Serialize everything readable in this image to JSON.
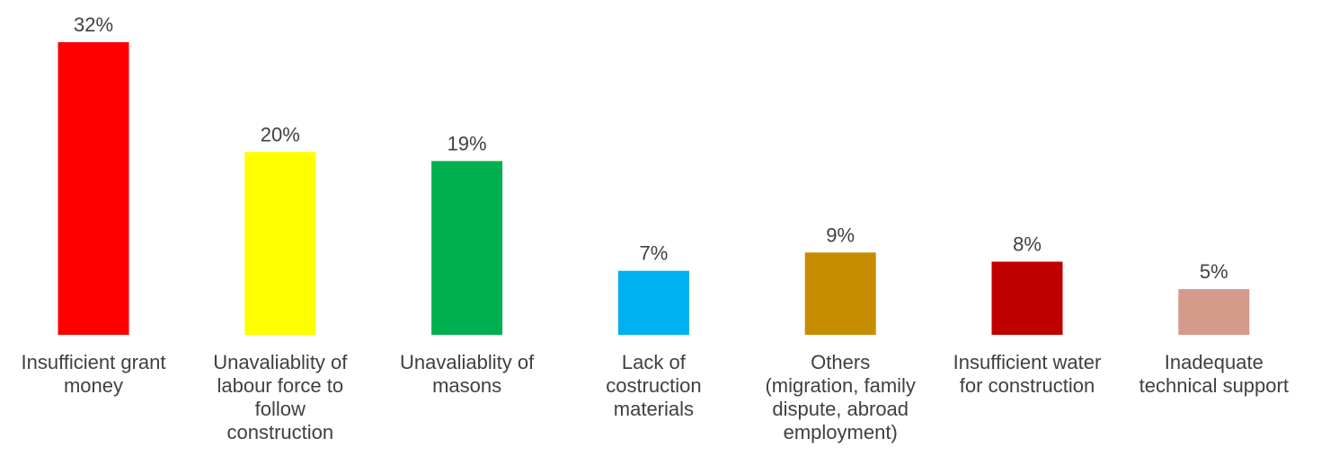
{
  "chart_data": {
    "type": "bar",
    "title": "",
    "xlabel": "",
    "ylabel": "",
    "ylim": [
      0,
      32
    ],
    "grid": false,
    "legend": "none",
    "value_suffix": "%",
    "categories": [
      "Insufficient grant money",
      "Unavaliablity of labour force to follow construction",
      "Unavaliablity of masons",
      "Lack of costruction materials",
      "Others (migration, family dispute, abroad employment)",
      "Insufficient water for construction",
      "Inadequate technical support"
    ],
    "category_lines": [
      [
        "Insufficient grant",
        "money"
      ],
      [
        "Unavaliablity of",
        "labour force to",
        "follow",
        "construction"
      ],
      [
        "Unavaliablity of",
        "masons"
      ],
      [
        "Lack of",
        "costruction",
        "materials"
      ],
      [
        "Others",
        "(migration, family",
        "dispute, abroad",
        "employment)"
      ],
      [
        "Insufficient water",
        "for construction"
      ],
      [
        "Inadequate",
        "technical support"
      ]
    ],
    "values": [
      32,
      20,
      19,
      7,
      9,
      8,
      5
    ],
    "data_labels": [
      "32%",
      "20%",
      "19%",
      "7%",
      "9%",
      "8%",
      "5%"
    ],
    "colors": [
      "#ff0000",
      "#ffff00",
      "#00b050",
      "#00b0f0",
      "#c88c00",
      "#c00000",
      "#d49a8a"
    ]
  }
}
